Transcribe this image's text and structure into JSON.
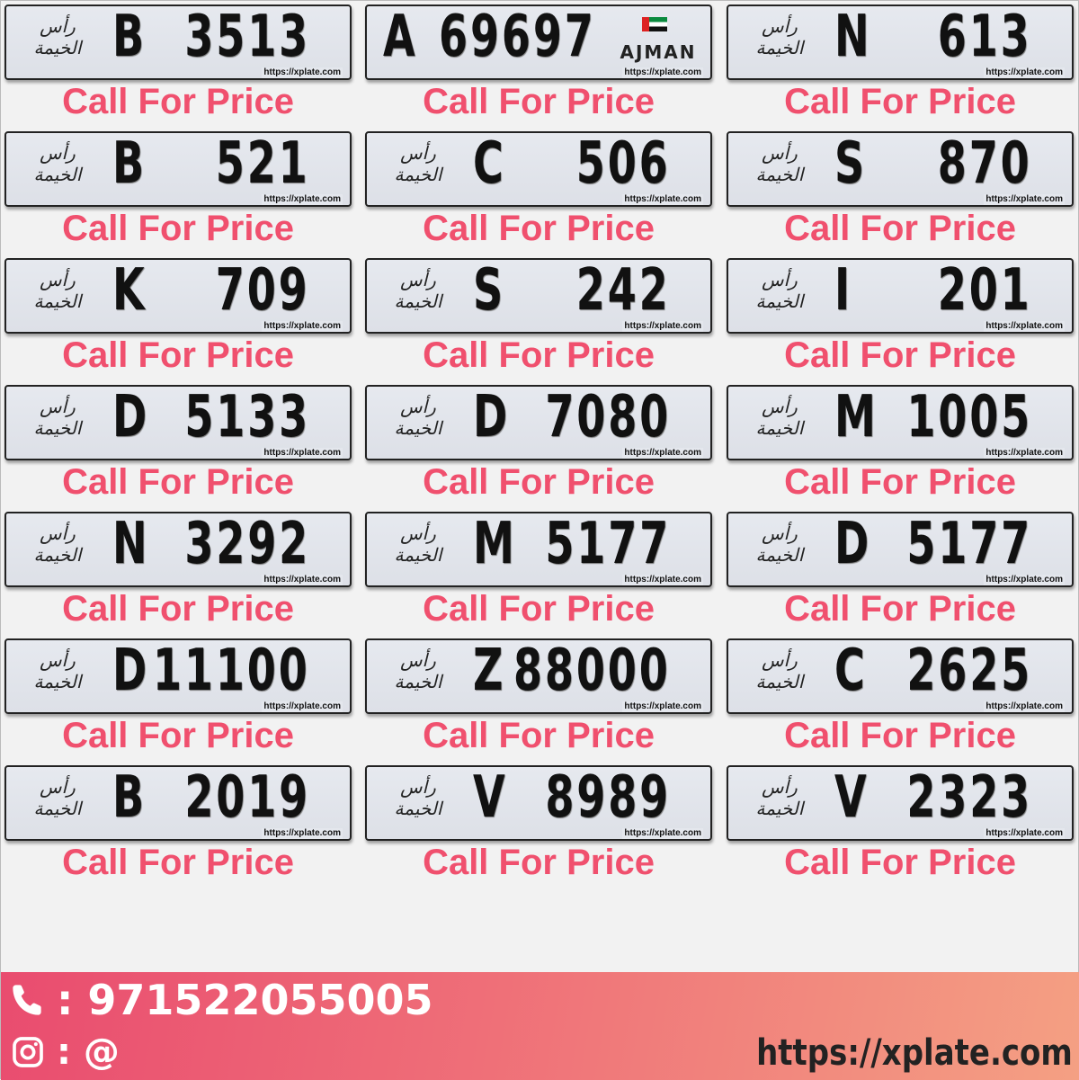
{
  "emirate_emblem_text": "رأس الخيمة",
  "ajman_text": "AJMAN",
  "watermark": "https://xplate.com",
  "price_label": "Call For Price",
  "plates": [
    {
      "code": "B",
      "number": "3513"
    },
    {
      "code": "A",
      "number": "69697",
      "emirate": "Ajman"
    },
    {
      "code": "N",
      "number": "613"
    },
    {
      "code": "B",
      "number": "521"
    },
    {
      "code": "C",
      "number": "506"
    },
    {
      "code": "S",
      "number": "870"
    },
    {
      "code": "K",
      "number": "709"
    },
    {
      "code": "S",
      "number": "242"
    },
    {
      "code": "I",
      "number": "201"
    },
    {
      "code": "D",
      "number": "5133"
    },
    {
      "code": "D",
      "number": "7080"
    },
    {
      "code": "M",
      "number": "1005"
    },
    {
      "code": "N",
      "number": "3292"
    },
    {
      "code": "M",
      "number": "5177"
    },
    {
      "code": "D",
      "number": "5177"
    },
    {
      "code": "D",
      "number": "11100"
    },
    {
      "code": "Z",
      "number": "88000"
    },
    {
      "code": "C",
      "number": "2625"
    },
    {
      "code": "B",
      "number": "2019"
    },
    {
      "code": "V",
      "number": "8989"
    },
    {
      "code": "V",
      "number": "2323"
    }
  ],
  "footer": {
    "phone": ": 971522055005",
    "instagram": ": @",
    "website": "https://xplate.com",
    "phone_icon": "phone-icon",
    "instagram_icon": "instagram-icon"
  },
  "colors": {
    "price": "#f0506e",
    "footer_start": "#e94c6f",
    "footer_end": "#f4a083"
  }
}
